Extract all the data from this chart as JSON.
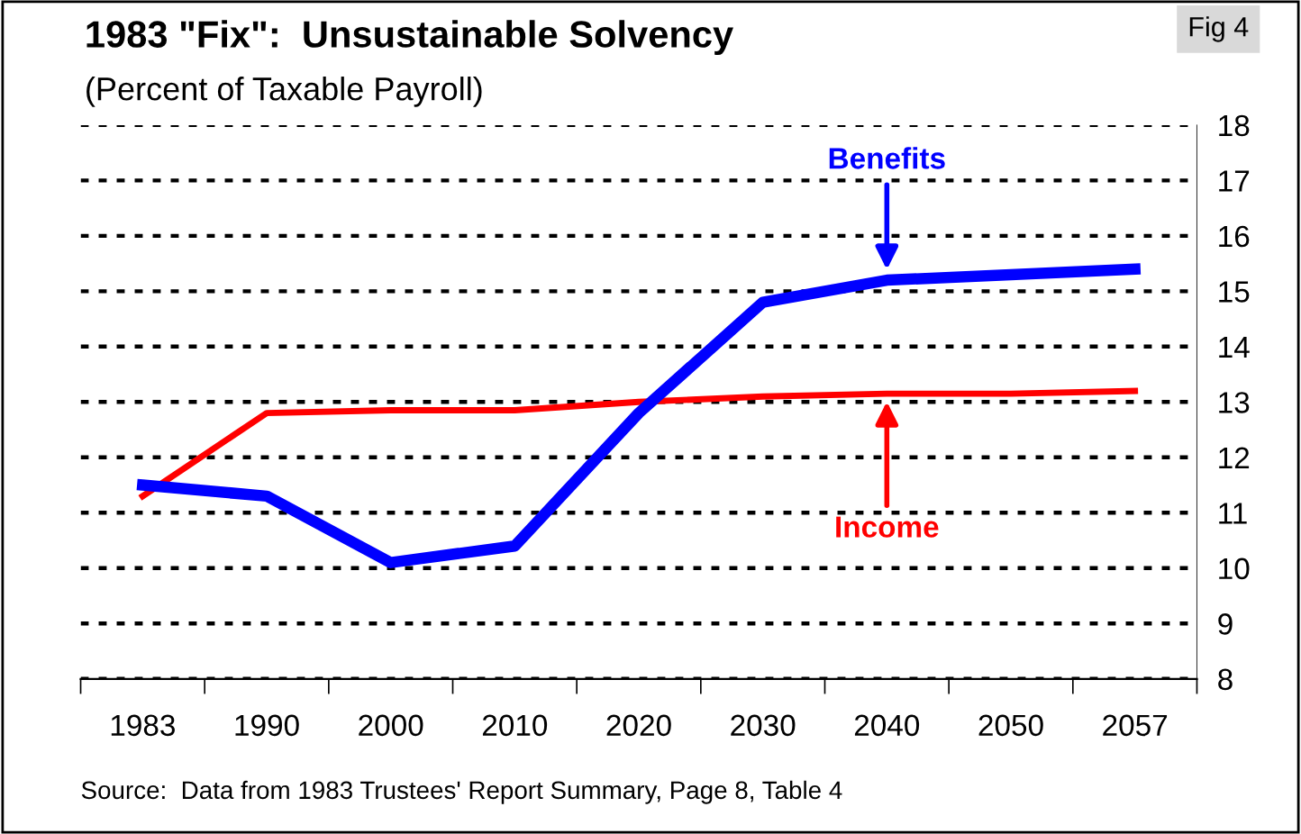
{
  "chart_data": {
    "type": "line",
    "title": "1983 \"Fix\":  Unsustainable Solvency",
    "subtitle": "(Percent of Taxable Payroll)",
    "categories": [
      "1983",
      "1990",
      "2000",
      "2010",
      "2020",
      "2030",
      "2040",
      "2050",
      "2057"
    ],
    "series": [
      {
        "color": "#0000ff",
        "values": [
          11.5,
          11.3,
          10.1,
          10.4,
          12.8,
          14.8,
          15.2,
          15.3,
          15.4
        ]
      },
      {
        "color": "#ff0000",
        "values": [
          11.3,
          12.8,
          12.85,
          12.85,
          13.0,
          13.1,
          13.15,
          13.15,
          13.2
        ]
      }
    ],
    "ylim": [
      8,
      18
    ],
    "yticks": [
      8,
      9,
      10,
      11,
      12,
      13,
      14,
      15,
      16,
      17,
      18
    ],
    "grid": "y",
    "legend": false,
    "marker": "none",
    "line_style": "solid",
    "annotations": [
      {
        "text": "Benefits",
        "x": "2040",
        "y": 15.2
      },
      {
        "text": "Income",
        "x": "2040",
        "y": 13.15
      },
      "Fig 4",
      "Source:  Data from 1983 Trustees' Report Summary, Page 8, Table 4"
    ]
  }
}
